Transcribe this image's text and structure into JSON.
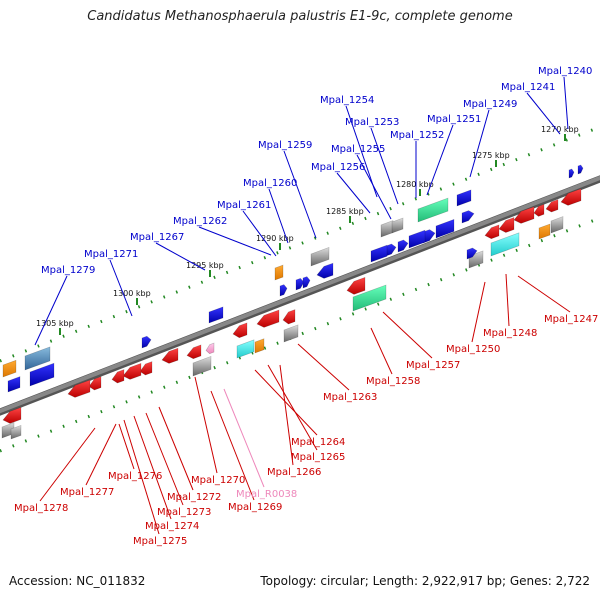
{
  "title": "Candidatus Methanosphaerula palustris E1-9c, complete genome",
  "footer": {
    "accession": "Accession: NC_011832",
    "topology": "Topology: circular; Length: 2,922,917 bp; Genes: 2,722"
  },
  "colors": {
    "forward_label": "#0000cc",
    "reverse_label": "#cc0000",
    "rna_label": "#ee88bb",
    "backbone": "#888888",
    "tick": "#228822"
  },
  "kbp_ticks": [
    "1270 kbp",
    "1275 kbp",
    "1280 kbp",
    "1285 kbp",
    "1290 kbp",
    "1295 kbp",
    "1300 kbp",
    "1305 kbp"
  ],
  "forward_labels": [
    "Mpal_1240",
    "Mpal_1241",
    "Mpal_1249",
    "Mpal_1254",
    "Mpal_1251",
    "Mpal_1253",
    "Mpal_1252",
    "Mpal_1255",
    "Mpal_1259",
    "Mpal_1256",
    "Mpal_1260",
    "Mpal_1261",
    "Mpal_1262",
    "Mpal_1267",
    "Mpal_1271",
    "Mpal_1279"
  ],
  "reverse_labels": [
    "Mpal_1247",
    "Mpal_1248",
    "Mpal_1250",
    "Mpal_1257",
    "Mpal_1258",
    "Mpal_1263",
    "Mpal_1264",
    "Mpal_1265",
    "Mpal_1266",
    "Mpal_1270",
    "Mpal_1276",
    "Mpal_1272",
    "Mpal_1277",
    "Mpal_1273",
    "Mpal_1274",
    "Mpal_1275",
    "Mpal_1278",
    "Mpal_1269"
  ],
  "rna_labels": [
    "Mpal_R0038"
  ]
}
